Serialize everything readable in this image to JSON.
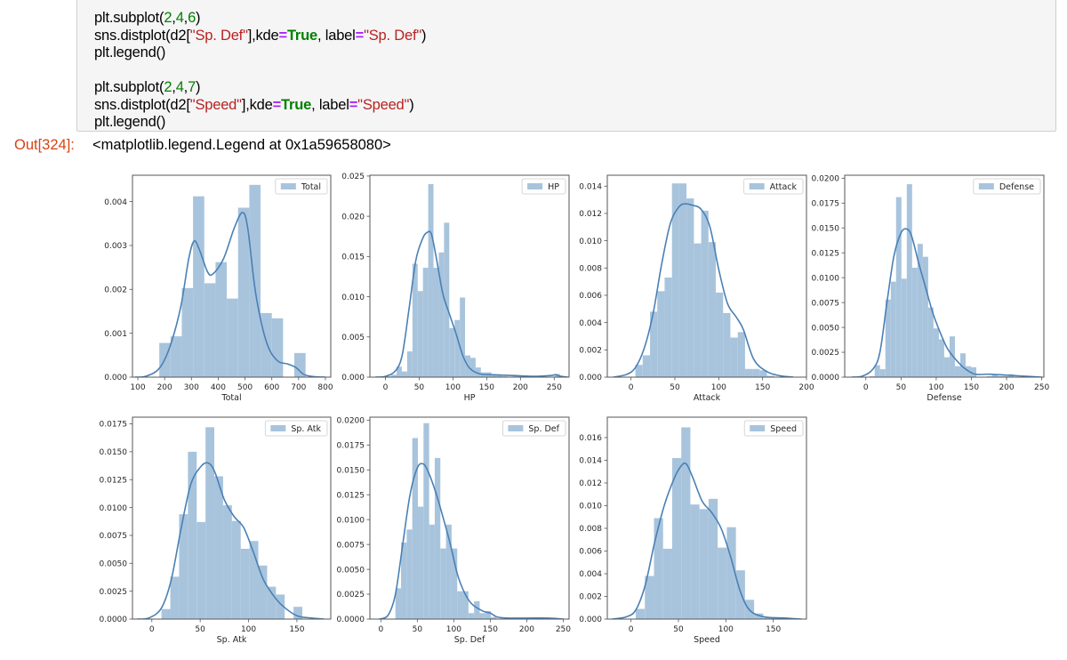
{
  "notebook": {
    "code_lines": [
      [
        {
          "t": "plt.subplot(",
          "c": ""
        },
        {
          "t": "2",
          "c": "num"
        },
        {
          "t": ",",
          "c": ""
        },
        {
          "t": "4",
          "c": "num"
        },
        {
          "t": ",",
          "c": ""
        },
        {
          "t": "6",
          "c": "num"
        },
        {
          "t": ")",
          "c": ""
        }
      ],
      [
        {
          "t": "sns.distplot(d2[",
          "c": ""
        },
        {
          "t": "\"Sp. Def\"",
          "c": "str"
        },
        {
          "t": "],kde",
          "c": ""
        },
        {
          "t": "=",
          "c": "op"
        },
        {
          "t": "True",
          "c": "kw"
        },
        {
          "t": ", label",
          "c": ""
        },
        {
          "t": "=",
          "c": "op"
        },
        {
          "t": "\"Sp. Def\"",
          "c": "str"
        },
        {
          "t": ")",
          "c": ""
        }
      ],
      [
        {
          "t": "plt.legend()",
          "c": ""
        }
      ],
      [
        {
          "t": "",
          "c": ""
        }
      ],
      [
        {
          "t": "plt.subplot(",
          "c": ""
        },
        {
          "t": "2",
          "c": "num"
        },
        {
          "t": ",",
          "c": ""
        },
        {
          "t": "4",
          "c": "num"
        },
        {
          "t": ",",
          "c": ""
        },
        {
          "t": "7",
          "c": "num"
        },
        {
          "t": ")",
          "c": ""
        }
      ],
      [
        {
          "t": "sns.distplot(d2[",
          "c": ""
        },
        {
          "t": "\"Speed\"",
          "c": "str"
        },
        {
          "t": "],kde",
          "c": ""
        },
        {
          "t": "=",
          "c": "op"
        },
        {
          "t": "True",
          "c": "kw"
        },
        {
          "t": ", label",
          "c": ""
        },
        {
          "t": "=",
          "c": "op"
        },
        {
          "t": "\"Speed\"",
          "c": "str"
        },
        {
          "t": ")",
          "c": ""
        }
      ],
      [
        {
          "t": "plt.legend()",
          "c": ""
        }
      ]
    ],
    "output_prompt": "Out[324]:",
    "output_text": "<matplotlib.legend.Legend at 0x1a59658080>"
  },
  "colors": {
    "bar": "#a8c4dd",
    "kde": "#4a80b4",
    "axis": "#555555",
    "output_prompt": "#d84315"
  },
  "chart_data": [
    {
      "type": "bar",
      "subtype": "histogram+kde",
      "title": "",
      "legend": "Total",
      "xlabel": "Total",
      "ylabel": "",
      "xlim": [
        80,
        820
      ],
      "ylim": [
        0,
        0.0046
      ],
      "xticks": [
        100,
        200,
        300,
        400,
        500,
        600,
        700,
        800
      ],
      "yticks": [
        0.0,
        0.001,
        0.002,
        0.003,
        0.004
      ],
      "ytick_labels": [
        "0.000",
        "0.001",
        "0.002",
        "0.003",
        "0.004"
      ],
      "bin_edges": [
        180,
        222,
        264,
        306,
        348,
        390,
        432,
        474,
        516,
        558,
        600,
        642,
        684,
        726
      ],
      "values": [
        0.00078,
        0.00093,
        0.00203,
        0.00412,
        0.00214,
        0.00262,
        0.00179,
        0.00386,
        0.00438,
        0.00146,
        0.00134,
        0,
        0.00055,
        4e-05
      ],
      "kde_x": [
        90,
        130,
        180,
        220,
        260,
        290,
        310,
        330,
        360,
        380,
        420,
        460,
        490,
        510,
        540,
        580,
        620,
        660,
        690,
        720,
        760,
        800
      ],
      "kde_y": [
        0,
        2e-05,
        0.0002,
        0.0007,
        0.0016,
        0.0027,
        0.0031,
        0.0029,
        0.0024,
        0.00235,
        0.0027,
        0.0034,
        0.00375,
        0.0034,
        0.0019,
        0.0008,
        0.00038,
        0.0003,
        0.00022,
        6e-05,
        1e-05,
        0
      ]
    },
    {
      "type": "bar",
      "subtype": "histogram+kde",
      "legend": "HP",
      "xlabel": "HP",
      "xlim": [
        -23,
        272
      ],
      "ylim": [
        0,
        0.0251
      ],
      "xticks": [
        0,
        50,
        100,
        150,
        200,
        250
      ],
      "yticks": [
        0.0,
        0.005,
        0.01,
        0.015,
        0.02,
        0.025
      ],
      "ytick_labels": [
        "0.000",
        "0.005",
        "0.010",
        "0.015",
        "0.020",
        "0.025"
      ],
      "bin_edges": [
        1,
        8.8,
        16.6,
        24.4,
        32.2,
        40,
        47.8,
        55.6,
        63.4,
        71.2,
        79,
        86.8,
        94.6,
        102.4,
        110.2,
        118,
        125.8,
        133.6,
        141.4,
        149.2,
        157,
        164.8,
        172.6,
        180.4,
        188.2,
        196,
        203.8,
        211.6,
        219.4,
        227.2,
        235,
        242.8,
        250.6,
        258.4
      ],
      "values": [
        0.0001,
        0.0003,
        0.0013,
        0.0007,
        0.0032,
        0.0141,
        0.0107,
        0.0136,
        0.024,
        0.0136,
        0.0155,
        0.0192,
        0.0061,
        0.0071,
        0.0099,
        0.0027,
        0.0024,
        0.0012,
        0.0006,
        0.0006,
        0.0003,
        0.0002,
        0.0001,
        0,
        0.0001,
        0.0001,
        0,
        0,
        0,
        0,
        0,
        0,
        0.0004
      ],
      "kde_x": [
        -15,
        0,
        15,
        25,
        35,
        45,
        55,
        62,
        68,
        75,
        85,
        95,
        105,
        115,
        125,
        140,
        160,
        190,
        220,
        245,
        252,
        260,
        270
      ],
      "kde_y": [
        0,
        0.0001,
        0.0008,
        0.0028,
        0.0085,
        0.0145,
        0.0172,
        0.018,
        0.0178,
        0.015,
        0.0104,
        0.0078,
        0.0053,
        0.0026,
        0.0011,
        0.0004,
        0.0003,
        0.0002,
        0.0001,
        0.0002,
        0.0003,
        0.0001,
        0
      ]
    },
    {
      "type": "bar",
      "subtype": "histogram+kde",
      "legend": "Attack",
      "xlabel": "Attack",
      "xlim": [
        -27,
        200
      ],
      "ylim": [
        0,
        0.0148
      ],
      "xticks": [
        0,
        50,
        100,
        150,
        200
      ],
      "yticks": [
        0.0,
        0.002,
        0.004,
        0.006,
        0.008,
        0.01,
        0.012,
        0.014
      ],
      "ytick_labels": [
        "0.000",
        "0.002",
        "0.004",
        "0.006",
        "0.008",
        "0.010",
        "0.012",
        "0.014"
      ],
      "bin_edges": [
        5,
        13.3,
        21.7,
        30,
        38.3,
        46.7,
        55,
        63.3,
        71.7,
        80,
        88.3,
        96.7,
        105,
        113.3,
        121.7,
        130,
        138.3,
        146.7,
        155,
        163.3
      ],
      "values": [
        0.0009,
        0.0016,
        0.0048,
        0.0063,
        0.0073,
        0.0142,
        0.0142,
        0.0131,
        0.0098,
        0.0122,
        0.0099,
        0.0062,
        0.0047,
        0.0029,
        0.0033,
        0.0006,
        0.0006,
        0.0005,
        0.0001
      ],
      "kde_x": [
        -20,
        -5,
        5,
        15,
        25,
        35,
        45,
        55,
        62,
        70,
        80,
        90,
        100,
        110,
        120,
        128,
        140,
        155,
        170,
        185
      ],
      "kde_y": [
        0,
        0.0002,
        0.0007,
        0.0021,
        0.0046,
        0.0083,
        0.0113,
        0.0125,
        0.0127,
        0.0126,
        0.0123,
        0.011,
        0.0079,
        0.0054,
        0.0044,
        0.0035,
        0.0013,
        0.0004,
        0.0001,
        0
      ]
    },
    {
      "type": "bar",
      "subtype": "histogram+kde",
      "legend": "Defense",
      "xlabel": "Defense",
      "xlim": [
        -30,
        253
      ],
      "ylim": [
        0,
        0.0203
      ],
      "xticks": [
        0,
        50,
        100,
        150,
        200,
        250
      ],
      "yticks": [
        0.0,
        0.0025,
        0.005,
        0.0075,
        0.01,
        0.0125,
        0.015,
        0.0175,
        0.02
      ],
      "ytick_labels": [
        "0.0000",
        "0.0025",
        "0.0050",
        "0.0075",
        "0.0100",
        "0.0125",
        "0.0150",
        "0.0175",
        "0.0200"
      ],
      "bin_edges": [
        5,
        12.6,
        20.2,
        27.8,
        35.4,
        43,
        50.6,
        58.2,
        65.8,
        73.4,
        81,
        88.6,
        96.2,
        103.8,
        111.4,
        119,
        126.6,
        134.2,
        141.8,
        149.4,
        157,
        164.6,
        172.2,
        179.8,
        187.4,
        195,
        202.6,
        210.2,
        217.8,
        225.4,
        233
      ],
      "values": [
        0.0001,
        0.0012,
        0.0008,
        0.0078,
        0.0096,
        0.0181,
        0.0099,
        0.0194,
        0.011,
        0.0134,
        0.0121,
        0.007,
        0.0049,
        0.0038,
        0.002,
        0.0041,
        0.0011,
        0.0024,
        0.0011,
        0.001,
        0,
        0,
        0.0001,
        0.0003,
        0.0001,
        0.0001,
        0.0003,
        0,
        0,
        0.0001
      ],
      "kde_x": [
        -20,
        -5,
        10,
        20,
        30,
        40,
        50,
        58,
        65,
        75,
        85,
        95,
        105,
        115,
        125,
        140,
        155,
        175,
        200,
        225,
        250
      ],
      "kde_y": [
        0,
        0.0001,
        0.0008,
        0.0025,
        0.0075,
        0.0122,
        0.0145,
        0.0149,
        0.0142,
        0.0115,
        0.009,
        0.0065,
        0.0046,
        0.003,
        0.002,
        0.0009,
        0.0003,
        0.0003,
        0.0002,
        0.0001,
        0
      ]
    },
    {
      "type": "bar",
      "subtype": "histogram+kde",
      "legend": "Sp. Atk",
      "xlabel": "Sp. Atk",
      "xlim": [
        -20,
        185
      ],
      "ylim": [
        0,
        0.0181
      ],
      "xticks": [
        0,
        50,
        100,
        150
      ],
      "yticks": [
        0.0,
        0.0025,
        0.005,
        0.0075,
        0.01,
        0.0125,
        0.015,
        0.0175
      ],
      "ytick_labels": [
        "0.0000",
        "0.0025",
        "0.0050",
        "0.0075",
        "0.0100",
        "0.0125",
        "0.0150",
        "0.0175"
      ],
      "bin_edges": [
        10,
        19.1,
        28.2,
        37.3,
        46.4,
        55.5,
        64.6,
        73.7,
        82.8,
        91.9,
        101,
        110.1,
        119.2,
        128.3,
        137.4,
        146.5,
        155.6
      ],
      "values": [
        0.0009,
        0.0038,
        0.0094,
        0.015,
        0.0087,
        0.0172,
        0.0128,
        0.0102,
        0.0088,
        0.0063,
        0.007,
        0.0048,
        0.0029,
        0.0022,
        0,
        0.0011
      ],
      "kde_x": [
        -15,
        -3,
        10,
        20,
        30,
        40,
        50,
        58,
        65,
        75,
        85,
        95,
        105,
        115,
        125,
        135,
        150,
        165,
        178
      ],
      "kde_y": [
        0,
        0.0001,
        0.001,
        0.0035,
        0.008,
        0.012,
        0.0136,
        0.014,
        0.0132,
        0.0107,
        0.0092,
        0.0082,
        0.006,
        0.0036,
        0.0022,
        0.0012,
        0.0003,
        0.0001,
        0
      ]
    },
    {
      "type": "bar",
      "subtype": "histogram+kde",
      "legend": "Sp. Def",
      "xlabel": "Sp. Def",
      "xlim": [
        -15,
        258
      ],
      "ylim": [
        0,
        0.0203
      ],
      "xticks": [
        0,
        50,
        100,
        150,
        200,
        250
      ],
      "yticks": [
        0.0,
        0.0025,
        0.005,
        0.0075,
        0.01,
        0.0125,
        0.015,
        0.0175,
        0.02
      ],
      "ytick_labels": [
        "0.0000",
        "0.0025",
        "0.0050",
        "0.0075",
        "0.0100",
        "0.0125",
        "0.0150",
        "0.0175",
        "0.0200"
      ],
      "bin_edges": [
        20,
        27.7,
        35.4,
        43.1,
        50.8,
        58.5,
        66.2,
        73.9,
        81.6,
        89.3,
        97,
        104.7,
        112.4,
        120.1,
        127.8,
        135.5,
        143.2,
        150.9,
        158.6,
        166.3,
        174,
        181.7,
        189.4,
        197.1,
        204.8,
        212.5,
        220.2,
        227.9,
        235.6
      ],
      "values": [
        0.0031,
        0.0077,
        0.009,
        0.0182,
        0.0113,
        0.0197,
        0.0095,
        0.0162,
        0.0071,
        0.0095,
        0.0071,
        0.0028,
        0.0028,
        0.0006,
        0.0018,
        0.0006,
        0.0008,
        0.0002,
        0,
        0,
        0,
        0,
        0.0001,
        0.0001,
        0,
        0,
        0,
        0.0001
      ],
      "kde_x": [
        -2,
        10,
        20,
        30,
        40,
        50,
        58,
        65,
        75,
        85,
        95,
        105,
        115,
        125,
        140,
        150,
        160,
        175,
        200,
        230,
        250
      ],
      "kde_y": [
        0,
        0.0004,
        0.0025,
        0.0075,
        0.0125,
        0.0152,
        0.0156,
        0.0148,
        0.0128,
        0.0103,
        0.0076,
        0.0045,
        0.0026,
        0.0015,
        0.0008,
        0.0006,
        0.0002,
        0.0001,
        0.0001,
        0.0001,
        0
      ]
    },
    {
      "type": "bar",
      "subtype": "histogram+kde",
      "legend": "Speed",
      "xlabel": "Speed",
      "xlim": [
        -25,
        185
      ],
      "ylim": [
        0,
        0.0178
      ],
      "xticks": [
        0,
        50,
        100,
        150
      ],
      "yticks": [
        0.0,
        0.002,
        0.004,
        0.006,
        0.008,
        0.01,
        0.012,
        0.014,
        0.016
      ],
      "ytick_labels": [
        "0.000",
        "0.002",
        "0.004",
        "0.006",
        "0.008",
        "0.010",
        "0.012",
        "0.014",
        "0.016"
      ],
      "bin_edges": [
        5,
        14.6,
        24.2,
        33.8,
        43.4,
        53,
        62.6,
        72.2,
        81.8,
        91.4,
        101,
        110.6,
        120.2,
        129.8,
        139.4,
        149,
        158.6
      ],
      "values": [
        0.0009,
        0.0038,
        0.0089,
        0.0062,
        0.0142,
        0.0169,
        0.0101,
        0.0097,
        0.0106,
        0.0063,
        0.0081,
        0.0043,
        0.0017,
        0.0005,
        0.0001,
        0.0001
      ],
      "kde_x": [
        -20,
        -5,
        5,
        15,
        25,
        35,
        45,
        52,
        58,
        65,
        75,
        85,
        95,
        105,
        115,
        125,
        140,
        160,
        180
      ],
      "kde_y": [
        0,
        0.0002,
        0.0008,
        0.003,
        0.0068,
        0.01,
        0.0123,
        0.0134,
        0.0137,
        0.0125,
        0.0104,
        0.0094,
        0.008,
        0.0055,
        0.0025,
        0.0008,
        0.0002,
        0.0001,
        0
      ]
    }
  ]
}
